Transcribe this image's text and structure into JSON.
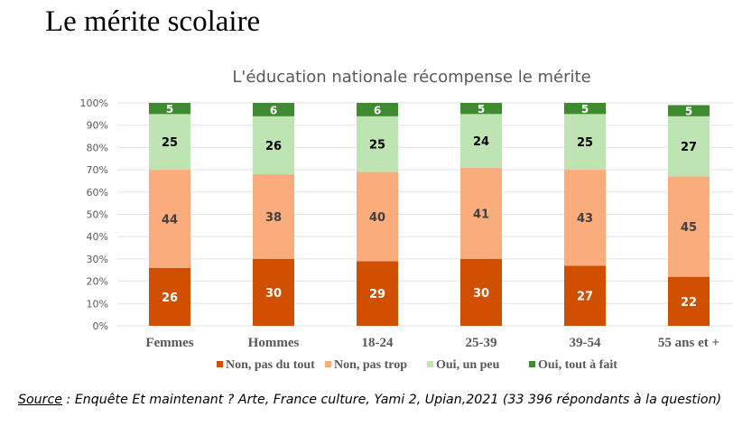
{
  "page": {
    "title": "Le mérite scolaire",
    "source_label": "Source",
    "source_text": " : Enquête Et maintenant ? Arte, France culture, Yami 2, Upian,2021 (33 396 répondants à la question)"
  },
  "chart_data": {
    "type": "bar",
    "stacked": true,
    "title": "L'éducation nationale récompense le mérite",
    "xlabel": "",
    "ylabel": "",
    "ylim": [
      0,
      100
    ],
    "yticks": [
      "0%",
      "10%",
      "20%",
      "30%",
      "40%",
      "50%",
      "60%",
      "70%",
      "80%",
      "90%",
      "100%"
    ],
    "grid": true,
    "legend_position": "bottom",
    "categories": [
      "Femmes",
      "Hommes",
      "18-24",
      "25-39",
      "39-54",
      "55 ans et +"
    ],
    "series": [
      {
        "name": "Non, pas du tout",
        "color": "#D14F00",
        "label_color": "#ffffff",
        "values": [
          26,
          30,
          29,
          30,
          27,
          22
        ]
      },
      {
        "name": "Non, pas trop",
        "color": "#FBAC7C",
        "label_color": "#404040",
        "values": [
          44,
          38,
          40,
          41,
          43,
          45
        ]
      },
      {
        "name": "Oui, un peu",
        "color": "#BEE4B4",
        "label_color": "#000000",
        "values": [
          25,
          26,
          25,
          24,
          25,
          27
        ]
      },
      {
        "name": "Oui, tout à fait",
        "color": "#3F8B2F",
        "label_color": "#ffffff",
        "values": [
          5,
          6,
          6,
          5,
          5,
          5
        ]
      }
    ]
  }
}
